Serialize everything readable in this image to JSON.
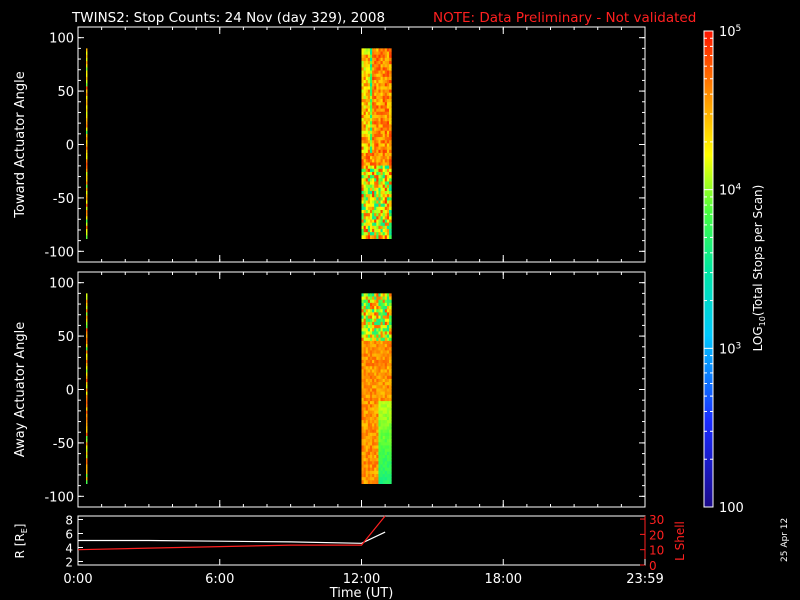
{
  "title": "TWINS2: Stop Counts: 24 Nov (day 329), 2008",
  "note": "NOTE: Data Preliminary - Not validated",
  "stamp": "25 Apr 12",
  "colors": {
    "note": "#ff2020",
    "axes": "#ffffff",
    "background": "#000000",
    "r_line": "#ffffff",
    "l_line": "#ff2020"
  },
  "chart_data": [
    {
      "type": "heatmap",
      "panel": "toward",
      "ylabel": "Toward Actuator Angle",
      "ylim": [
        -110,
        110
      ],
      "yticks": [
        100,
        50,
        0,
        -50,
        -100
      ],
      "xlim": [
        0,
        24
      ],
      "x_ticks_unlabeled": [
        "0:00",
        "6:00",
        "12:00",
        "18:00",
        "23:59"
      ],
      "data_coverage": [
        {
          "start": "00:00",
          "end": "00:10",
          "angle_range": [
            -88,
            90
          ],
          "description_level": "mixed 10^3.5 - 10^4.6"
        },
        {
          "start": "12:00",
          "end": "13:00",
          "angle_range": [
            -88,
            90
          ],
          "description_level": "mostly ~10^4.5 - 10^5"
        }
      ],
      "colorbar": {
        "label": "LOG10(Total Stops per Scan)",
        "range": [
          100,
          100000
        ],
        "scale": "log",
        "ticks": [
          "100",
          "10^3",
          "10^4",
          "10^5"
        ]
      }
    },
    {
      "type": "heatmap",
      "panel": "away",
      "ylabel": "Away Actuator Angle",
      "ylim": [
        -110,
        110
      ],
      "yticks": [
        100,
        50,
        0,
        -50,
        -100
      ],
      "xlim": [
        0,
        24
      ],
      "data_coverage": [
        {
          "start": "00:00",
          "end": "00:10",
          "angle_range": [
            -88,
            90
          ],
          "description_level": "mixed 10^4 - 10^4.6"
        },
        {
          "start": "12:00",
          "end": "13:00",
          "angle_range": [
            -88,
            90
          ],
          "description_level": "mostly ~10^4.4 - 10^4.8"
        }
      ]
    },
    {
      "type": "line",
      "panel": "orbit",
      "xlabel": "Time (UT)",
      "x_tick_labels": [
        "0:00",
        "6:00",
        "12:00",
        "18:00",
        "23:59"
      ],
      "x_tick_hours": [
        0,
        6,
        12,
        18,
        24
      ],
      "xlim": [
        0,
        24
      ],
      "left_axis": {
        "label": "R [Rₑ]",
        "label_main": "R [R",
        "label_sub": "E",
        "label_end": "]",
        "ticks": [
          2,
          4,
          6,
          8
        ],
        "ylim": [
          1.5,
          8.5
        ]
      },
      "right_axis": {
        "label": "L Shell",
        "ticks": [
          0,
          10,
          20,
          30
        ],
        "ylim": [
          0,
          32
        ]
      },
      "series": [
        {
          "name": "R",
          "axis": "left",
          "x": [
            0,
            3,
            6,
            9,
            12,
            13
          ],
          "y": [
            5.0,
            5.0,
            4.9,
            4.8,
            4.6,
            6.2
          ]
        },
        {
          "name": "L Shell",
          "axis": "right",
          "x": [
            0,
            3,
            6,
            9,
            12,
            13
          ],
          "y": [
            10,
            11,
            12,
            13,
            13,
            32
          ]
        }
      ]
    }
  ]
}
